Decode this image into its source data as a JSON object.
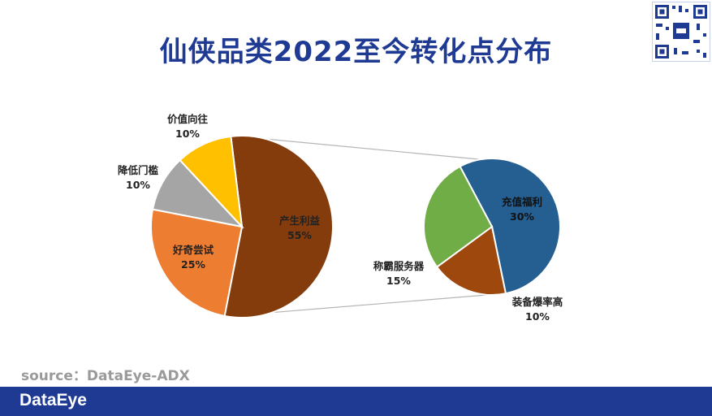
{
  "title": "仙侠品类2022至今转化点分布",
  "source": "source：DataEye-ADX",
  "brand": "DataEye",
  "chart_data": [
    {
      "type": "pie",
      "categories": [
        "产生利益",
        "好奇尝试",
        "降低门槛",
        "价值向往"
      ],
      "values": [
        55,
        25,
        10,
        10
      ],
      "labels": [
        "55%",
        "25%",
        "10%",
        "10%"
      ],
      "colors": [
        "#843c0c",
        "#ed7d31",
        "#a5a5a5",
        "#ffc000"
      ]
    },
    {
      "type": "pie",
      "categories": [
        "充值福利",
        "装备爆率高",
        "称霸服务器"
      ],
      "values": [
        30,
        10,
        15
      ],
      "labels": [
        "30%",
        "10%",
        "15%"
      ],
      "colors": [
        "#255e91",
        "#9e480e",
        "#70ad47"
      ]
    }
  ]
}
